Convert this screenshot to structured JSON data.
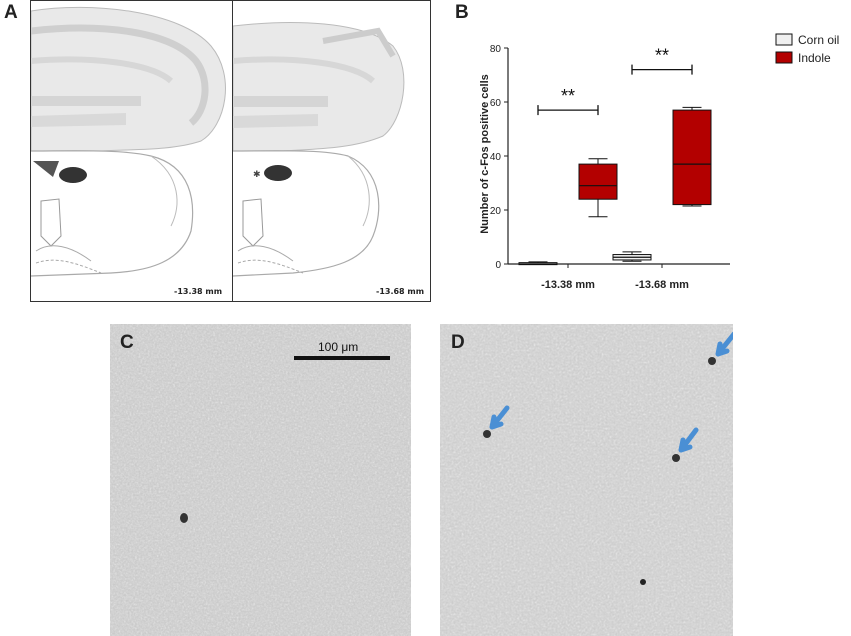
{
  "panels": {
    "a": {
      "letter": "A",
      "left_level": "-13.38 mm",
      "right_level": "-13.68 mm"
    },
    "b": {
      "letter": "B"
    },
    "c": {
      "letter": "C",
      "scale_label": "100 μm"
    },
    "d": {
      "letter": "D"
    }
  },
  "colors": {
    "corn_oil": "#f0f0f0",
    "indole": "#b30000",
    "arrow": "#4a8fd4"
  },
  "chart_data": {
    "type": "box",
    "title": "",
    "ylabel": "Number of c-Fos positive cells",
    "xlabel": "",
    "ylim": [
      0,
      80
    ],
    "yticks": [
      0,
      20,
      40,
      60,
      80
    ],
    "categories": [
      "-13.38 mm",
      "-13.68 mm"
    ],
    "series": [
      {
        "name": "Corn oil",
        "color": "#f0f0f0",
        "boxes": [
          {
            "min": 0,
            "q1": 0,
            "median": 0,
            "q3": 0.5,
            "max": 0.8
          },
          {
            "min": 1,
            "q1": 1.5,
            "median": 2.5,
            "q3": 3.5,
            "max": 4.5
          }
        ]
      },
      {
        "name": "Indole",
        "color": "#b30000",
        "boxes": [
          {
            "min": 17.5,
            "q1": 24,
            "median": 29,
            "q3": 37,
            "max": 39
          },
          {
            "min": 21.5,
            "q1": 22,
            "median": 37,
            "q3": 57,
            "max": 58
          }
        ]
      }
    ],
    "significance": [
      {
        "category": "-13.38 mm",
        "label": "**",
        "y": 57
      },
      {
        "category": "-13.68 mm",
        "label": "**",
        "y": 72
      }
    ],
    "legend": {
      "position": "top-right",
      "entries": [
        "Corn oil",
        "Indole"
      ]
    }
  }
}
